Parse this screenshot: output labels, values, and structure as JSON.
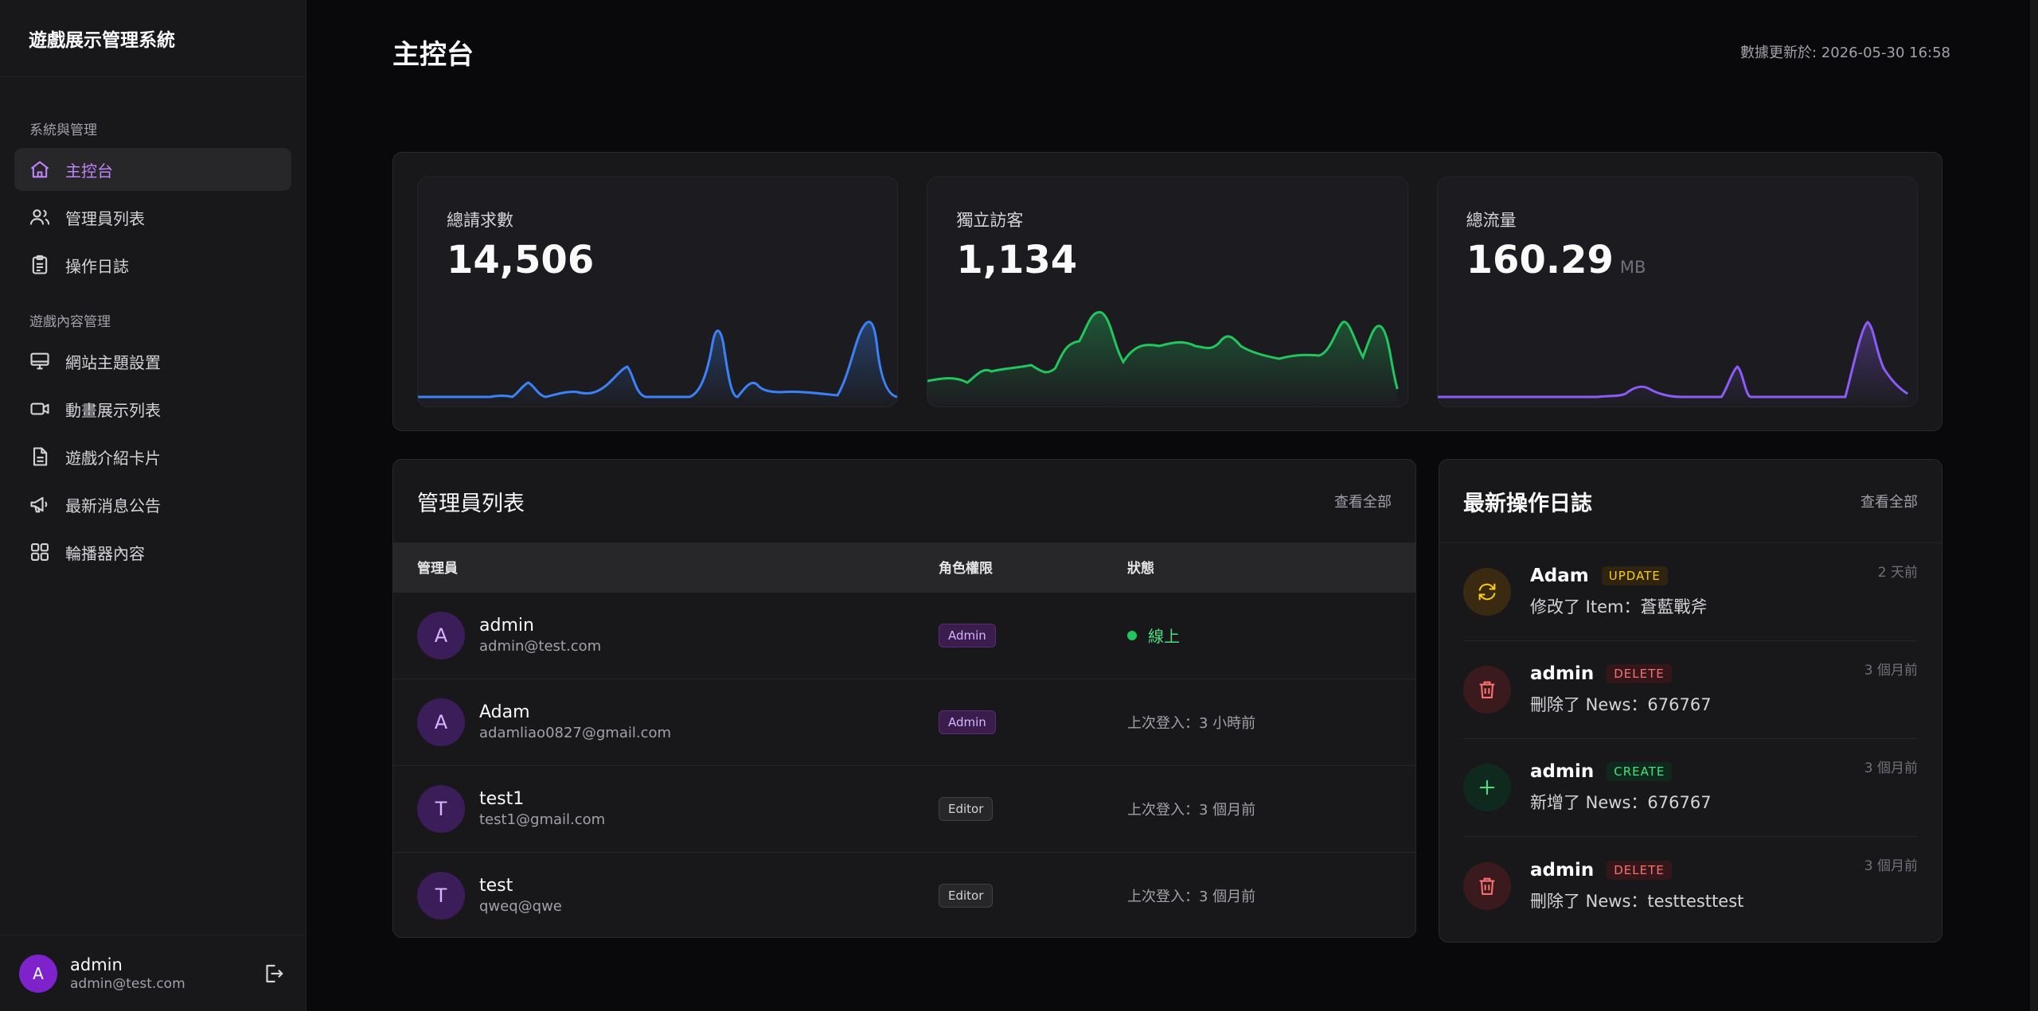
{
  "sidebar": {
    "brand": "遊戲展示管理系統",
    "section1_title": "系統與管理",
    "section2_title": "遊戲內容管理",
    "items": [
      {
        "label": "主控台",
        "icon": "home-icon"
      },
      {
        "label": "管理員列表",
        "icon": "users-icon"
      },
      {
        "label": "操作日誌",
        "icon": "clipboard-icon"
      },
      {
        "label": "網站主題設置",
        "icon": "monitor-icon"
      },
      {
        "label": "動畫展示列表",
        "icon": "video-icon"
      },
      {
        "label": "遊戲介紹卡片",
        "icon": "document-icon"
      },
      {
        "label": "最新消息公告",
        "icon": "megaphone-icon"
      },
      {
        "label": "輪播器內容",
        "icon": "grid-icon"
      }
    ],
    "user": {
      "initial": "A",
      "name": "admin",
      "email": "admin@test.com"
    }
  },
  "header": {
    "title": "主控台",
    "updated": "數據更新於: 2026-05-30 16:58"
  },
  "stats": [
    {
      "label": "總請求數",
      "value": "14,506",
      "unit": "",
      "color": "#3b82f6"
    },
    {
      "label": "獨立訪客",
      "value": "1,134",
      "unit": "",
      "color": "#22c55e"
    },
    {
      "label": "總流量",
      "value": "160.29",
      "unit": "MB",
      "color": "#8b5cf6"
    }
  ],
  "admins_panel": {
    "title": "管理員列表",
    "view_all": "查看全部",
    "columns": [
      "管理員",
      "角色權限",
      "狀態"
    ],
    "rows": [
      {
        "initial": "A",
        "name": "admin",
        "email": "admin@test.com",
        "role": "Admin",
        "status": "線上",
        "online": true
      },
      {
        "initial": "A",
        "name": "Adam",
        "email": "adamliao0827@gmail.com",
        "role": "Admin",
        "status": "上次登入：3 小時前",
        "online": false
      },
      {
        "initial": "T",
        "name": "test1",
        "email": "test1@gmail.com",
        "role": "Editor",
        "status": "上次登入：3 個月前",
        "online": false
      },
      {
        "initial": "T",
        "name": "test",
        "email": "qweq@qwe",
        "role": "Editor",
        "status": "上次登入：3 個月前",
        "online": false
      }
    ]
  },
  "logs_panel": {
    "title": "最新操作日誌",
    "view_all": "查看全部",
    "items": [
      {
        "user": "Adam",
        "action": "UPDATE",
        "desc": "修改了 Item：蒼藍戰斧",
        "time": "2 天前",
        "icon": "refresh-icon"
      },
      {
        "user": "admin",
        "action": "DELETE",
        "desc": "刪除了 News：676767",
        "time": "3 個月前",
        "icon": "trash-icon"
      },
      {
        "user": "admin",
        "action": "CREATE",
        "desc": "新增了 News：676767",
        "time": "3 個月前",
        "icon": "plus-icon"
      },
      {
        "user": "admin",
        "action": "DELETE",
        "desc": "刪除了 News：testtesttest",
        "time": "3 個月前",
        "icon": "trash-icon"
      }
    ]
  }
}
